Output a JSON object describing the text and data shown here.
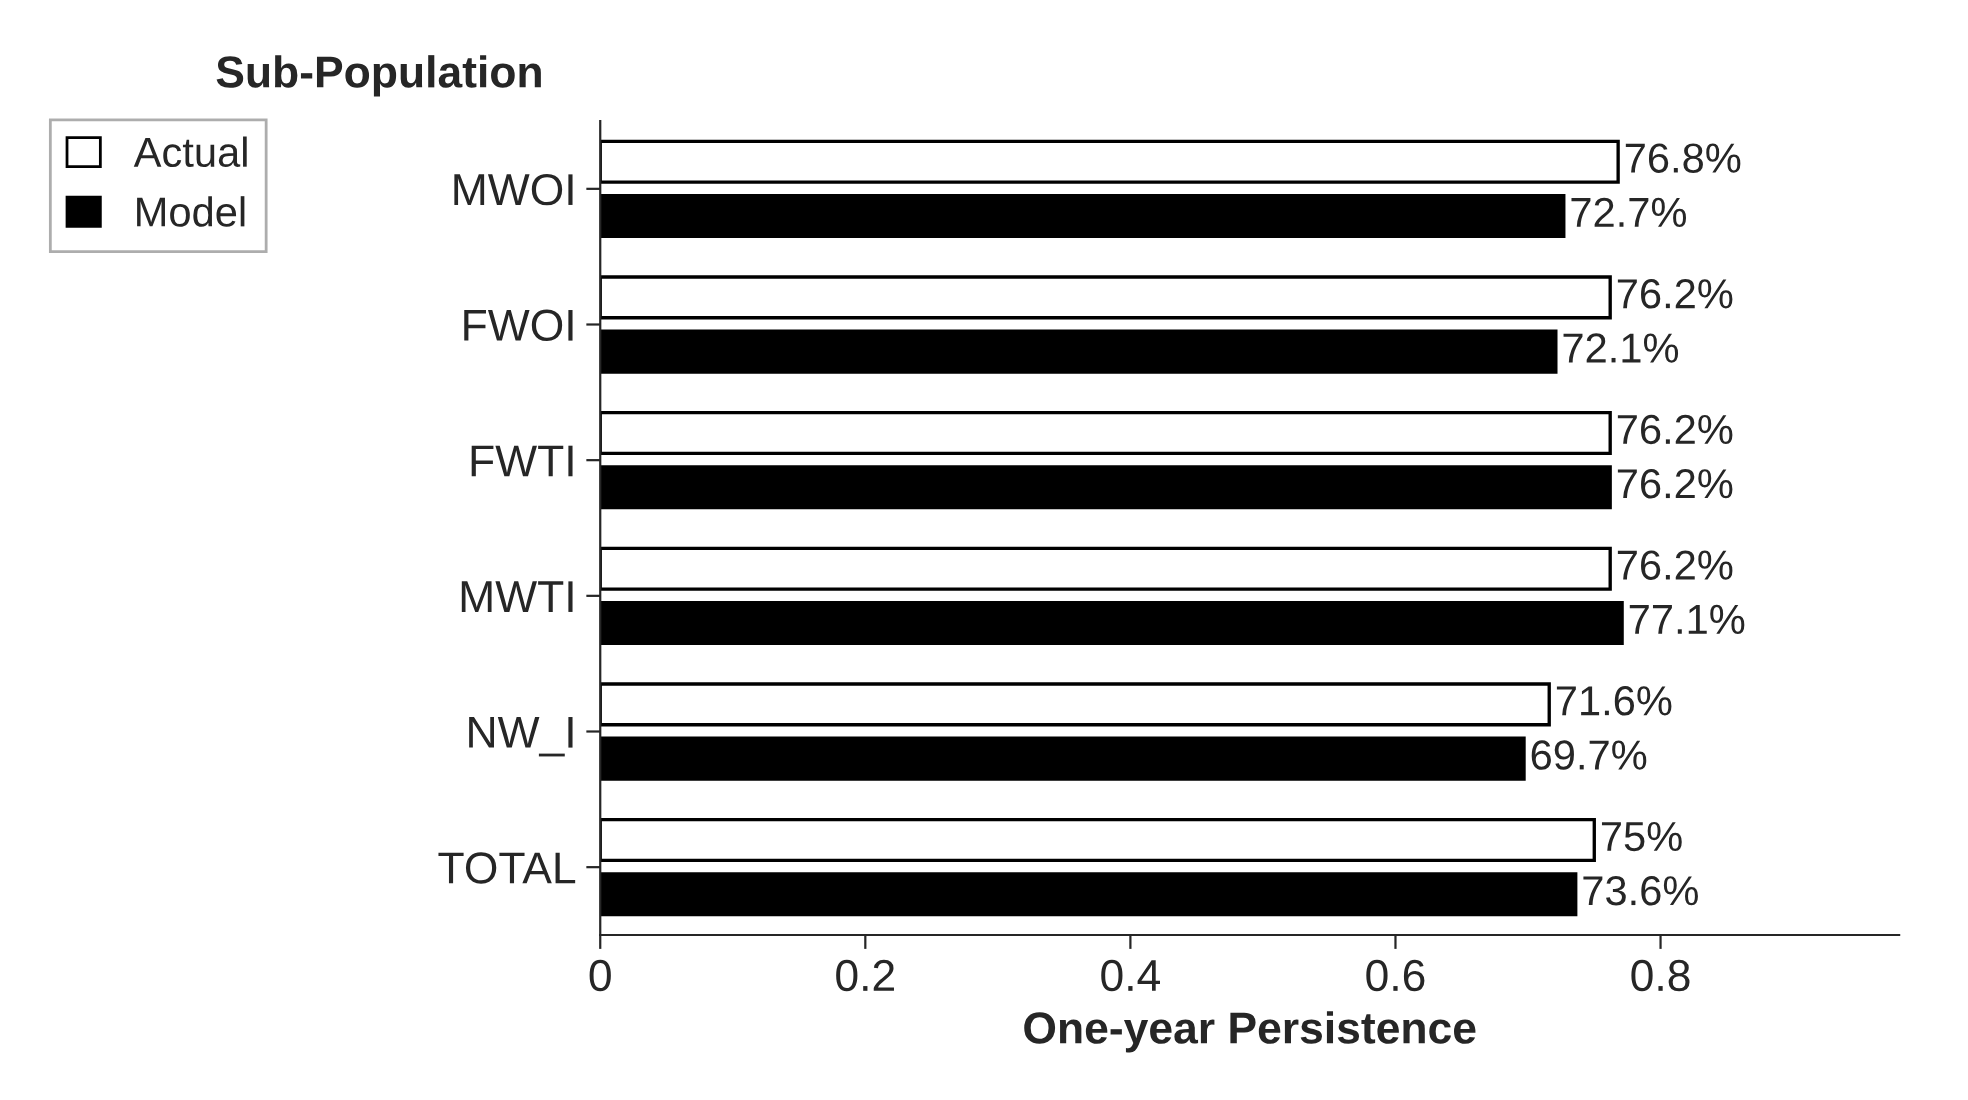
{
  "chart_data": {
    "type": "bar",
    "orientation": "horizontal",
    "ylabel": "Sub-Population",
    "xlabel": "One-year Persistence",
    "categories": [
      "MWOI",
      "FWOI",
      "FWTI",
      "MWTI",
      "NW_I",
      "TOTAL"
    ],
    "series": [
      {
        "name": "Actual",
        "color": "#ffffff",
        "values": [
          0.768,
          0.762,
          0.762,
          0.762,
          0.716,
          0.75
        ],
        "value_labels": [
          "76.8%",
          "76.2%",
          "76.2%",
          "76.2%",
          "71.6%",
          "75%"
        ]
      },
      {
        "name": "Model",
        "color": "#000000",
        "values": [
          0.727,
          0.721,
          0.762,
          0.771,
          0.697,
          0.736
        ],
        "value_labels": [
          "72.7%",
          "72.1%",
          "76.2%",
          "77.1%",
          "69.7%",
          "73.6%"
        ]
      }
    ],
    "xlim": [
      0,
      0.98
    ],
    "xticks": [
      0,
      0.2,
      0.4,
      0.6,
      0.8
    ],
    "grid": false,
    "legend": "top left"
  }
}
